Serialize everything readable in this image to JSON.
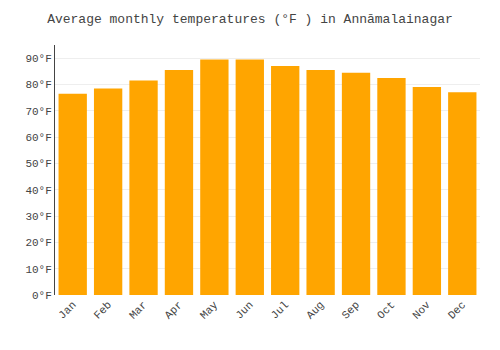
{
  "chart_data": {
    "type": "bar",
    "title": "Average monthly temperatures (°F ) in Annāmalainagar",
    "categories": [
      "Jan",
      "Feb",
      "Mar",
      "Apr",
      "May",
      "Jun",
      "Jul",
      "Aug",
      "Sep",
      "Oct",
      "Nov",
      "Dec"
    ],
    "values": [
      76.5,
      78.5,
      81.5,
      85.5,
      89.5,
      89.5,
      87.0,
      85.5,
      84.5,
      82.5,
      79.0,
      77.0
    ],
    "color": "#FFA500",
    "ylim": [
      0,
      95
    ],
    "yticks": [
      {
        "value": 0,
        "label": "0°F"
      },
      {
        "value": 10,
        "label": "10°F"
      },
      {
        "value": 20,
        "label": "20°F"
      },
      {
        "value": 30,
        "label": "30°F"
      },
      {
        "value": 40,
        "label": "40°F"
      },
      {
        "value": 50,
        "label": "50°F"
      },
      {
        "value": 60,
        "label": "60°F"
      },
      {
        "value": 70,
        "label": "70°F"
      },
      {
        "value": 80,
        "label": "80°F"
      },
      {
        "value": 90,
        "label": "90°F"
      }
    ],
    "grid": true
  }
}
